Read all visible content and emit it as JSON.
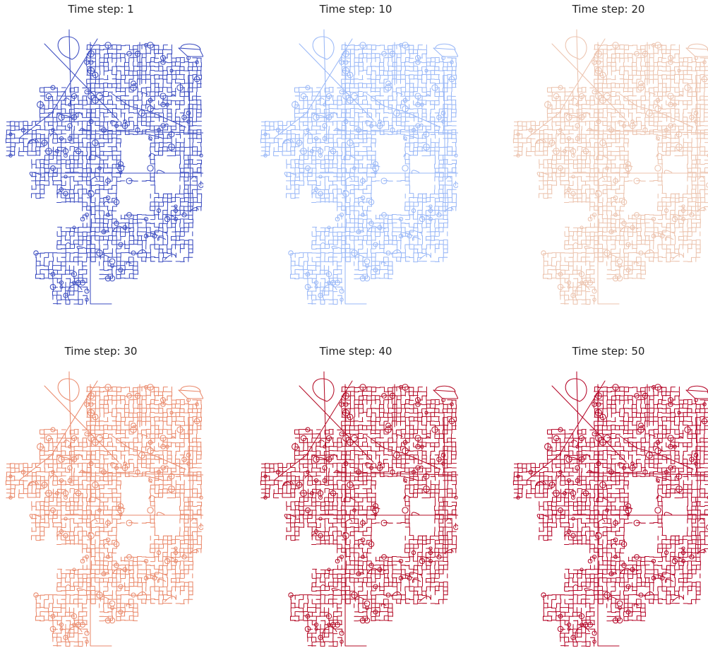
{
  "figure": {
    "panels": [
      {
        "title": "Time step: 1",
        "color": "#3b4cc0"
      },
      {
        "title": "Time step: 10",
        "color": "#9ab8f7"
      },
      {
        "title": "Time step: 20",
        "color": "#ecc3ae"
      },
      {
        "title": "Time step: 30",
        "color": "#ea8a6c"
      },
      {
        "title": "Time step: 40",
        "color": "#b40c26"
      },
      {
        "title": "Time step: 50",
        "color": "#b40426"
      }
    ]
  }
}
